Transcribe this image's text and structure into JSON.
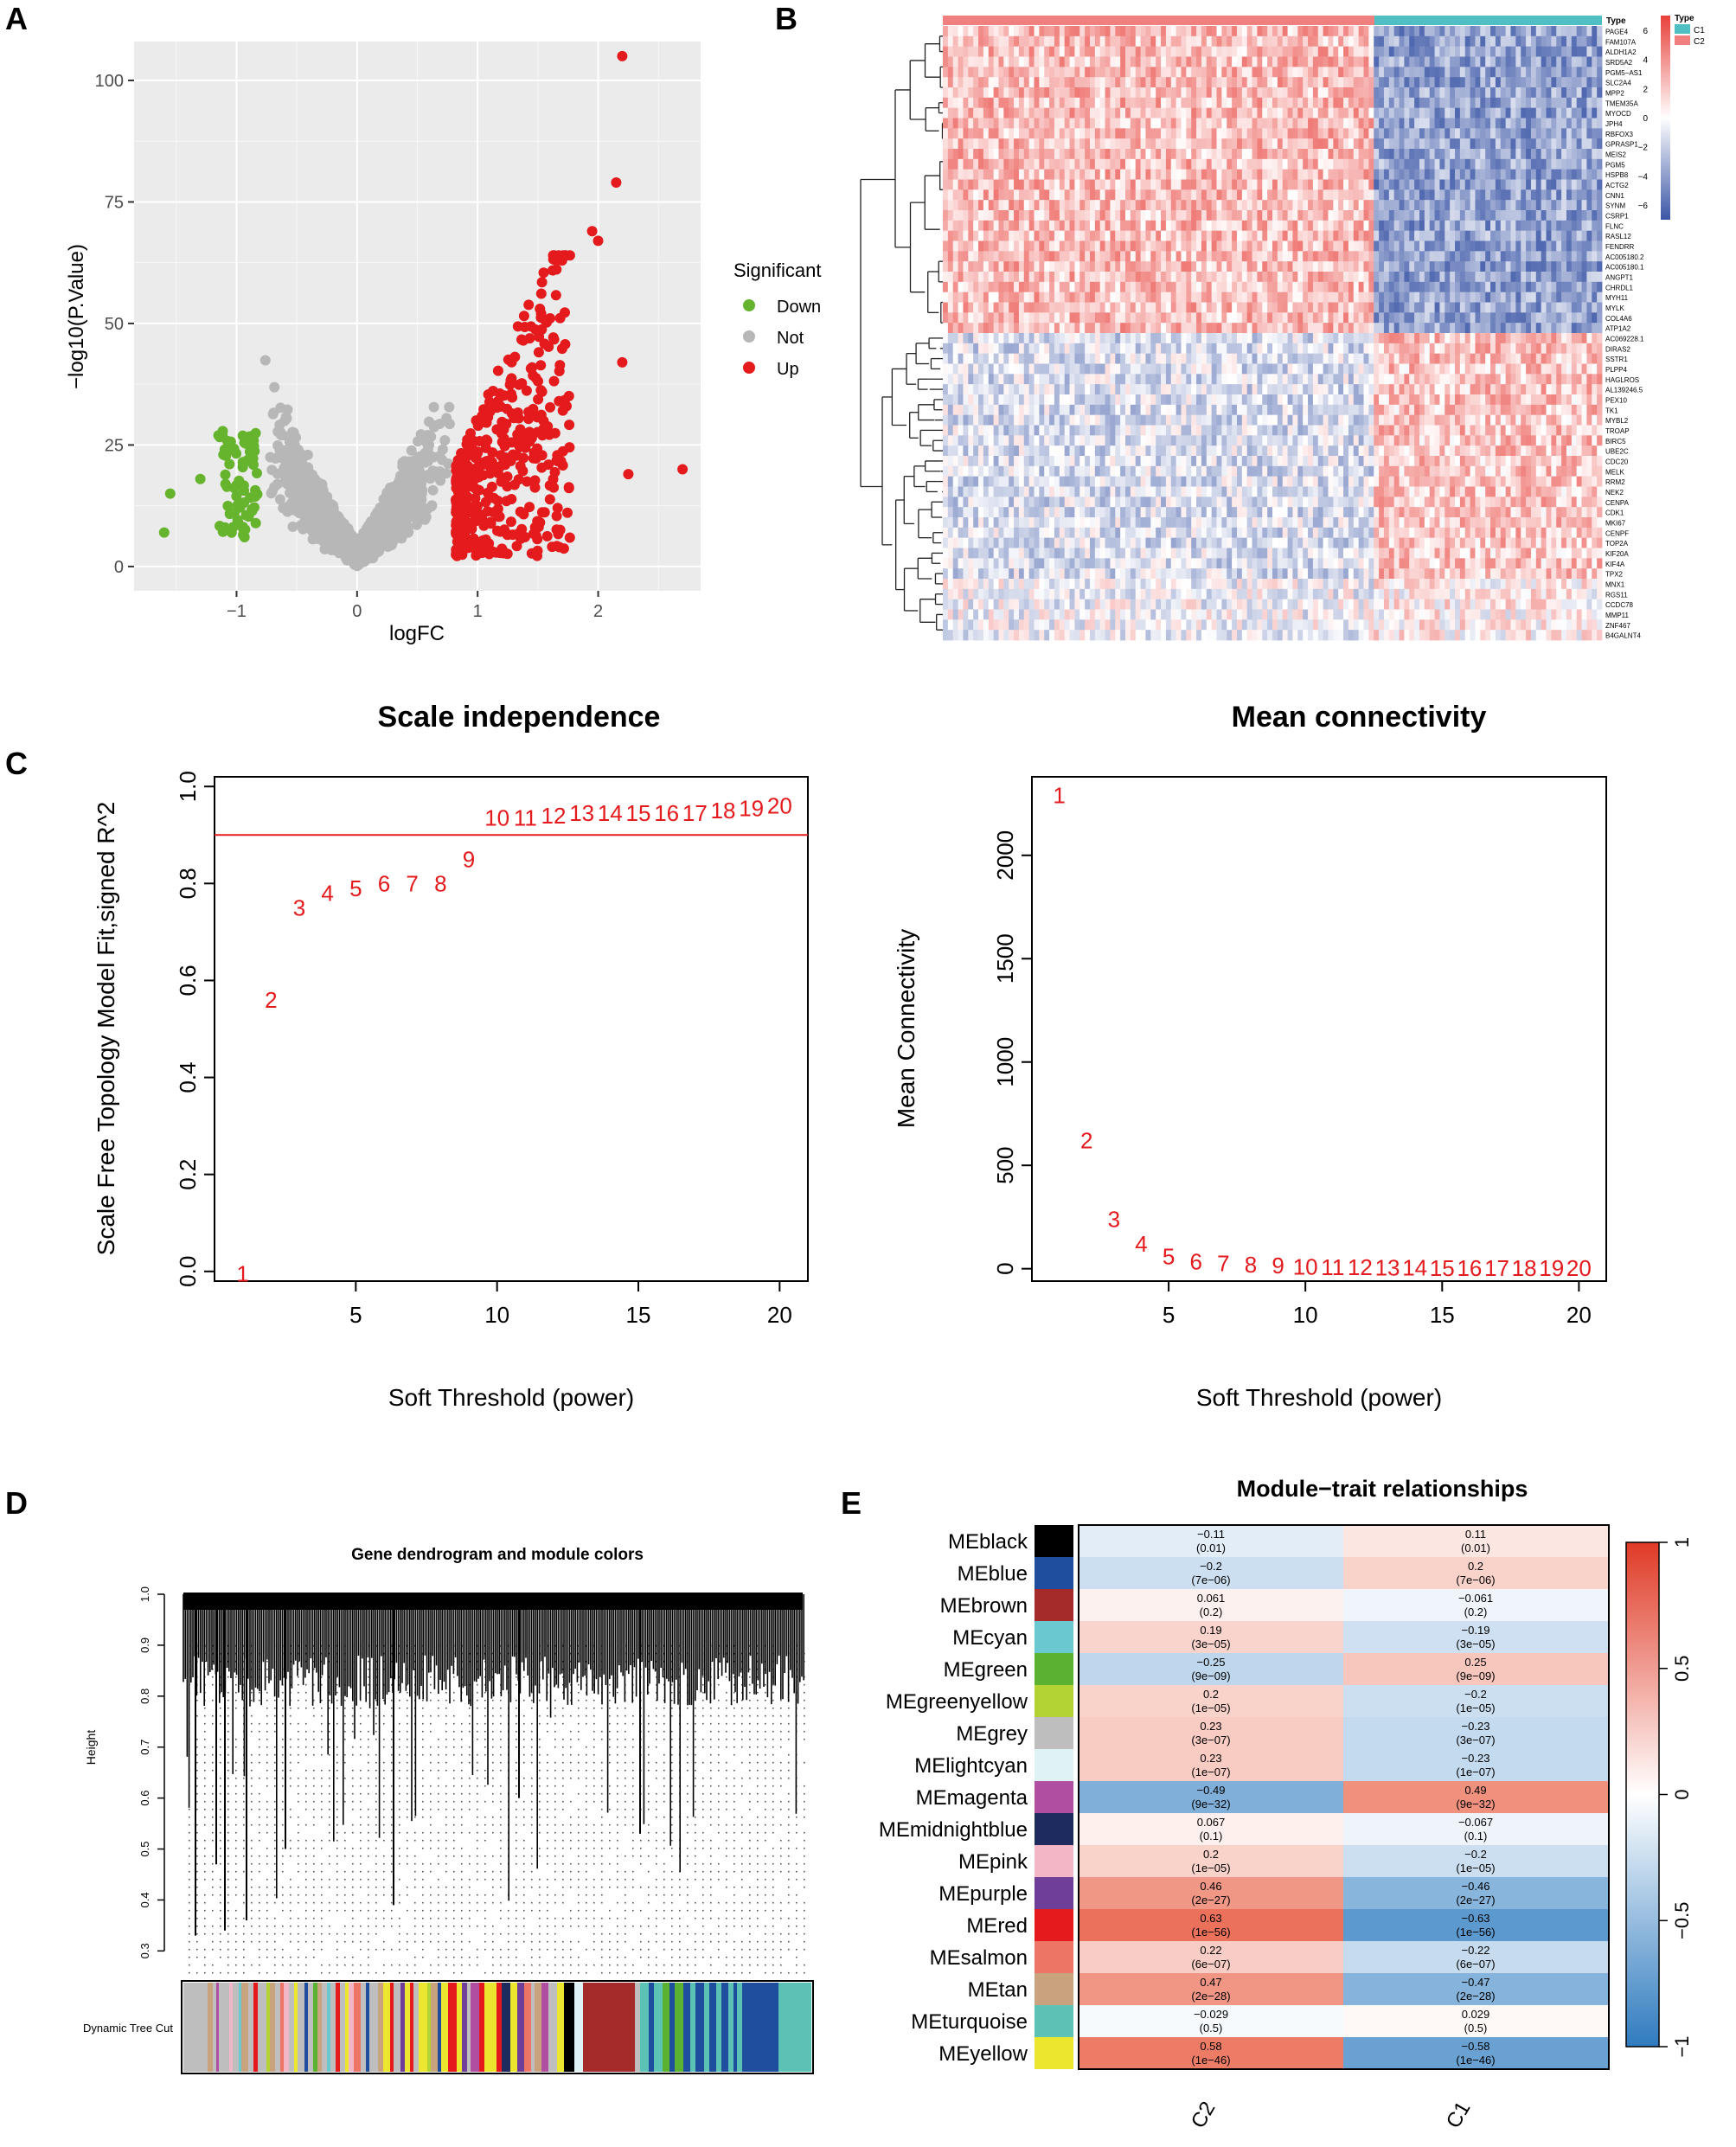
{
  "panel_labels": [
    "A",
    "B",
    "C",
    "D",
    "E"
  ],
  "colors": {
    "down": "#66b32e",
    "not": "#b7b7b7",
    "up": "#e41a1c",
    "ggplot_bg": "#ebebeb",
    "grid": "#ffffff",
    "c1": "#4fbfc4",
    "c2": "#f08080",
    "heat_high": "#e8403a",
    "heat_mid": "#ffffff",
    "heat_low": "#3b56a6",
    "wgcna_red": "#d62728",
    "corr_pos": "#e8563a",
    "corr_neg": "#3d86c6"
  },
  "chart_data": [
    {
      "panel": "A",
      "type": "scatter",
      "title": "",
      "xlabel": "logFC",
      "ylabel": "−log10(P.Value)",
      "xlim": [
        -1.85,
        2.85
      ],
      "ylim": [
        -5,
        108
      ],
      "xticks": [
        "−1",
        "0",
        "1",
        "2"
      ],
      "xtick_values": [
        -1,
        0,
        1,
        2
      ],
      "yticks": [
        "0",
        "25",
        "50",
        "75",
        "100"
      ],
      "ytick_values": [
        0,
        25,
        50,
        75,
        100
      ],
      "legend_title": "Significant",
      "legend": [
        "Down",
        "Not",
        "Up"
      ],
      "cutoff_logfc": 0.8,
      "extreme_up_points": [
        [
          2.2,
          105
        ],
        [
          2.15,
          79
        ],
        [
          1.95,
          69
        ],
        [
          2.0,
          67
        ],
        [
          2.7,
          20
        ],
        [
          2.25,
          19
        ],
        [
          2.2,
          42
        ]
      ],
      "extreme_down_points": [
        [
          -1.6,
          7
        ],
        [
          -1.55,
          15
        ],
        [
          -1.3,
          18
        ],
        [
          -1.15,
          27
        ],
        [
          -1.05,
          24
        ]
      ]
    },
    {
      "panel": "B",
      "type": "heatmap",
      "annotation_title": "Type",
      "groups": [
        "C1",
        "C2"
      ],
      "color_scale_title": "Type",
      "color_scale_ticks": [
        "6",
        "4",
        "2",
        "0",
        "−2",
        "−4",
        "−6"
      ],
      "color_scale_values": [
        6,
        4,
        2,
        0,
        -2,
        -4,
        -6
      ],
      "genes_up_in_C2": [
        "PAGE4",
        "FAM107A",
        "ALDH1A2",
        "SRD5A2",
        "PGM5−AS1",
        "SLC2A4",
        "MPP2",
        "TMEM35A",
        "MYOCD",
        "JPH4",
        "RBFOX3",
        "GPRASP1",
        "MEIS2",
        "PGM5",
        "HSPB8",
        "ACTG2",
        "CNN1",
        "SYNM",
        "CSRP1",
        "FLNC",
        "RASL12",
        "FENDRR",
        "AC005180.2",
        "AC005180.1",
        "ANGPT1",
        "CHRDL1",
        "MYH11",
        "MYLK",
        "COL4A6",
        "ATP1A2"
      ],
      "genes_up_in_C1": [
        "AC069228.1",
        "DIRAS2",
        "SSTR1",
        "PLPP4",
        "HAGLROS",
        "AL139246.5",
        "PEX10",
        "TK1",
        "MYBL2",
        "TROAP",
        "BIRC5",
        "UBE2C",
        "CDC20",
        "MELK",
        "RRM2",
        "NEK2",
        "CENPA",
        "CDK1",
        "MKI67",
        "CENPF",
        "TOP2A",
        "KIF20A",
        "KIF4A",
        "TPX2",
        "MNX1",
        "RGS11",
        "CCDC78",
        "MMP11",
        "ZNF467",
        "B4GALNT4"
      ]
    },
    {
      "panel": "C-left",
      "type": "scatter",
      "title": "Scale independence",
      "xlabel": "Soft Threshold (power)",
      "ylabel": "Scale Free Topology Model Fit,signed R^2",
      "xlim": [
        0,
        21
      ],
      "ylim": [
        -0.02,
        1.02
      ],
      "xticks": [
        "5",
        "10",
        "15",
        "20"
      ],
      "xtick_values": [
        5,
        10,
        15,
        20
      ],
      "yticks": [
        "0.0",
        "0.2",
        "0.4",
        "0.6",
        "0.8",
        "1.0"
      ],
      "ytick_values": [
        0,
        0.2,
        0.4,
        0.6,
        0.8,
        1.0
      ],
      "hline": 0.9,
      "x": [
        1,
        2,
        3,
        4,
        5,
        6,
        7,
        8,
        9,
        10,
        11,
        12,
        13,
        14,
        15,
        16,
        17,
        18,
        19,
        20
      ],
      "y": [
        -0.005,
        0.56,
        0.75,
        0.78,
        0.79,
        0.8,
        0.8,
        0.8,
        0.85,
        0.935,
        0.935,
        0.94,
        0.945,
        0.945,
        0.945,
        0.945,
        0.945,
        0.95,
        0.955,
        0.96
      ],
      "labels": [
        "1",
        "2",
        "3",
        "4",
        "5",
        "6",
        "7",
        "8",
        "9",
        "10",
        "11",
        "12",
        "13",
        "14",
        "15",
        "16",
        "17",
        "18",
        "19",
        "20"
      ]
    },
    {
      "panel": "C-right",
      "type": "scatter",
      "title": "Mean connectivity",
      "xlabel": "Soft Threshold (power)",
      "ylabel": "Mean Connectivity",
      "xlim": [
        0,
        21
      ],
      "ylim": [
        -60,
        2380
      ],
      "xticks": [
        "5",
        "10",
        "15",
        "20"
      ],
      "xtick_values": [
        5,
        10,
        15,
        20
      ],
      "yticks": [
        "0",
        "500",
        "1000",
        "1500",
        "2000"
      ],
      "ytick_values": [
        0,
        500,
        1000,
        1500,
        2000
      ],
      "x": [
        1,
        2,
        3,
        4,
        5,
        6,
        7,
        8,
        9,
        10,
        11,
        12,
        13,
        14,
        15,
        16,
        17,
        18,
        19,
        20
      ],
      "y": [
        2290,
        620,
        240,
        120,
        60,
        35,
        25,
        20,
        15,
        10,
        8,
        6,
        5,
        4,
        3,
        3,
        2,
        2,
        2,
        2
      ],
      "labels": [
        "1",
        "2",
        "3",
        "4",
        "5",
        "6",
        "7",
        "8",
        "9",
        "10",
        "11",
        "12",
        "13",
        "14",
        "15",
        "16",
        "17",
        "18",
        "19",
        "20"
      ]
    },
    {
      "panel": "D",
      "type": "dendrogram",
      "title": "Gene dendrogram and module colors",
      "ylabel": "Height",
      "ylim": [
        0.27,
        1.0
      ],
      "yticks": [
        "0.3",
        "0.4",
        "0.5",
        "0.6",
        "0.7",
        "0.8",
        "0.9",
        "1.0"
      ],
      "ytick_values": [
        0.3,
        0.4,
        0.5,
        0.6,
        0.7,
        0.8,
        0.9,
        1.0
      ],
      "color_bar_label": "Dynamic Tree Cut"
    },
    {
      "panel": "E",
      "type": "heatmap",
      "title": "Module−trait relationships",
      "columns": [
        "C2",
        "C1"
      ],
      "colorbar_ticks": [
        "1",
        "0.5",
        "0",
        "−0.5",
        "−1"
      ],
      "colorbar_values": [
        1,
        0.5,
        0,
        -0.5,
        -1
      ],
      "rows": [
        {
          "name": "MEblack",
          "color": "#000000",
          "c2": "−0.11",
          "c2p": "(0.01)",
          "c1": "0.11",
          "c1p": "(0.01)",
          "v": -0.11
        },
        {
          "name": "MEblue",
          "color": "#1f4e9e",
          "c2": "−0.2",
          "c2p": "(7e−06)",
          "c1": "0.2",
          "c1p": "(7e−06)",
          "v": -0.2
        },
        {
          "name": "MEbrown",
          "color": "#a52a2a",
          "c2": "0.061",
          "c2p": "(0.2)",
          "c1": "−0.061",
          "c1p": "(0.2)",
          "v": 0.061
        },
        {
          "name": "MEcyan",
          "color": "#6ac9d0",
          "c2": "0.19",
          "c2p": "(3e−05)",
          "c1": "−0.19",
          "c1p": "(3e−05)",
          "v": 0.19
        },
        {
          "name": "MEgreen",
          "color": "#5bb230",
          "c2": "−0.25",
          "c2p": "(9e−09)",
          "c1": "0.25",
          "c1p": "(9e−09)",
          "v": -0.25
        },
        {
          "name": "MEgreenyellow",
          "color": "#b3d335",
          "c2": "0.2",
          "c2p": "(1e−05)",
          "c1": "−0.2",
          "c1p": "(1e−05)",
          "v": 0.2
        },
        {
          "name": "MEgrey",
          "color": "#bebebe",
          "c2": "0.23",
          "c2p": "(3e−07)",
          "c1": "−0.23",
          "c1p": "(3e−07)",
          "v": 0.23
        },
        {
          "name": "MElightcyan",
          "color": "#dff3f5",
          "c2": "0.23",
          "c2p": "(1e−07)",
          "c1": "−0.23",
          "c1p": "(1e−07)",
          "v": 0.23
        },
        {
          "name": "MEmagenta",
          "color": "#b04fa1",
          "c2": "−0.49",
          "c2p": "(9e−32)",
          "c1": "0.49",
          "c1p": "(9e−32)",
          "v": -0.49
        },
        {
          "name": "MEmidnightblue",
          "color": "#1e2b5e",
          "c2": "0.067",
          "c2p": "(0.1)",
          "c1": "−0.067",
          "c1p": "(0.1)",
          "v": 0.067
        },
        {
          "name": "MEpink",
          "color": "#f2b6c6",
          "c2": "0.2",
          "c2p": "(1e−05)",
          "c1": "−0.2",
          "c1p": "(1e−05)",
          "v": 0.2
        },
        {
          "name": "MEpurple",
          "color": "#6f3e98",
          "c2": "0.46",
          "c2p": "(2e−27)",
          "c1": "−0.46",
          "c1p": "(2e−27)",
          "v": 0.46
        },
        {
          "name": "MEred",
          "color": "#e41a1c",
          "c2": "0.63",
          "c2p": "(1e−56)",
          "c1": "−0.63",
          "c1p": "(1e−56)",
          "v": 0.63
        },
        {
          "name": "MEsalmon",
          "color": "#ed7566",
          "c2": "0.22",
          "c2p": "(6e−07)",
          "c1": "−0.22",
          "c1p": "(6e−07)",
          "v": 0.22
        },
        {
          "name": "MEtan",
          "color": "#c9a27e",
          "c2": "0.47",
          "c2p": "(2e−28)",
          "c1": "−0.47",
          "c1p": "(2e−28)",
          "v": 0.47
        },
        {
          "name": "MEturquoise",
          "color": "#5cc2b6",
          "c2": "−0.029",
          "c2p": "(0.5)",
          "c1": "0.029",
          "c1p": "(0.5)",
          "v": -0.029
        },
        {
          "name": "MEyellow",
          "color": "#ece62f",
          "c2": "0.58",
          "c2p": "(1e−46)",
          "c1": "−0.58",
          "c1p": "(1e−46)",
          "v": 0.58
        }
      ]
    }
  ]
}
